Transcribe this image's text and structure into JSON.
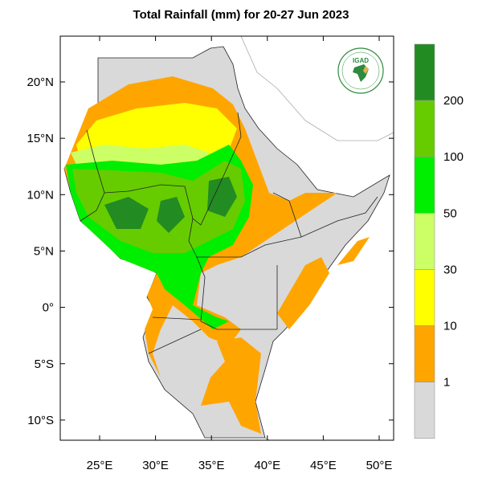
{
  "title": "Total Rainfall (mm) for 20-27 Jun 2023",
  "logo": {
    "text": "IGAD"
  },
  "map": {
    "lon_ticks": [
      "25°E",
      "30°E",
      "35°E",
      "40°E",
      "45°E",
      "50°E"
    ],
    "lat_ticks": [
      "20°N",
      "15°N",
      "10°N",
      "5°N",
      "0°",
      "5°S",
      "10°S"
    ]
  },
  "colorbar": {
    "labels": [
      "200",
      "100",
      "50",
      "30",
      "10",
      "1"
    ],
    "colors": [
      "#228B22",
      "#66CC00",
      "#00EE00",
      "#CCFF66",
      "#FFFF00",
      "#FFA500",
      "#D9D9D9"
    ]
  }
}
